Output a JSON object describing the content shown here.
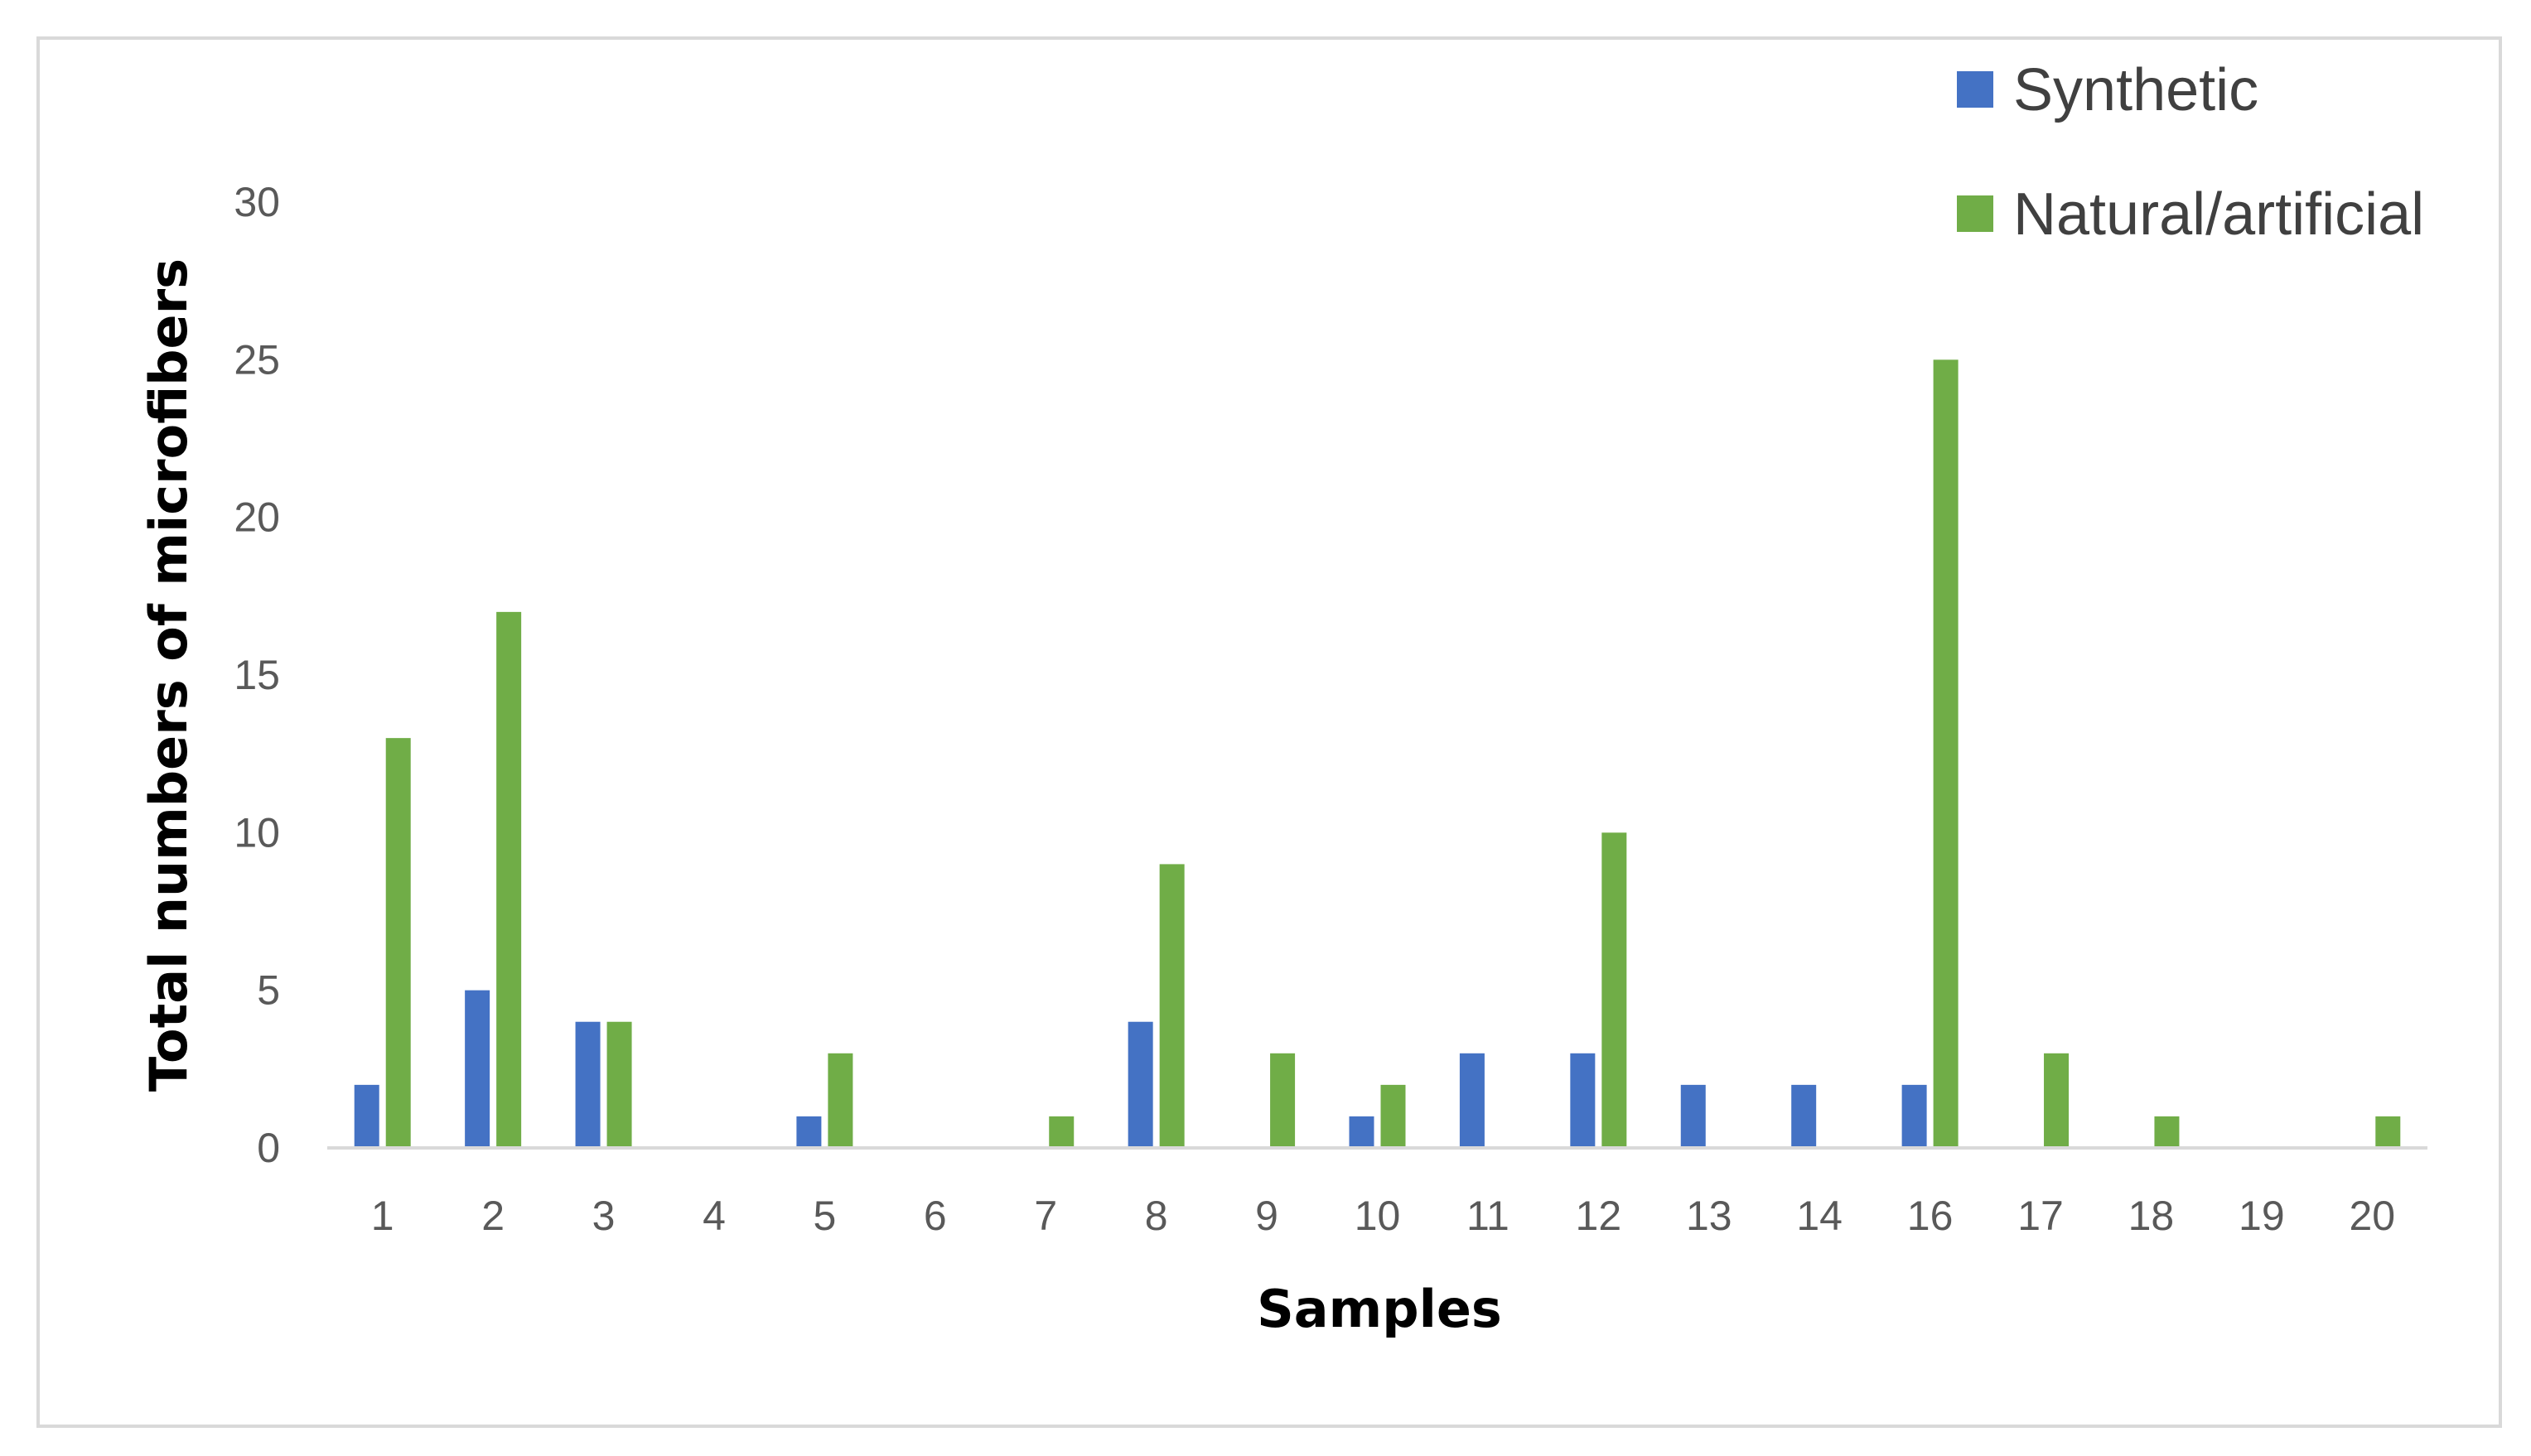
{
  "chart_data": {
    "type": "bar",
    "xlabel": "Samples",
    "ylabel": "Total numbers of microfibers",
    "ylim": [
      0,
      30
    ],
    "yticks": [
      0,
      5,
      10,
      15,
      20,
      25,
      30
    ],
    "grid": false,
    "legend_position": "top-right",
    "categories": [
      "1",
      "2",
      "3",
      "4",
      "5",
      "6",
      "7",
      "8",
      "9",
      "10",
      "11",
      "12",
      "13",
      "14",
      "16",
      "17",
      "18",
      "19",
      "20"
    ],
    "series": [
      {
        "name": "Synthetic",
        "color": "#4472c4",
        "values": [
          2,
          5,
          4,
          0,
          1,
          0,
          0,
          4,
          0,
          1,
          3,
          3,
          2,
          2,
          2,
          0,
          0,
          0,
          0
        ]
      },
      {
        "name": "Natural/artificial",
        "color": "#70ad47",
        "values": [
          13,
          17,
          4,
          0,
          3,
          0,
          1,
          9,
          3,
          2,
          0,
          10,
          0,
          0,
          25,
          3,
          1,
          0,
          1
        ]
      }
    ]
  }
}
